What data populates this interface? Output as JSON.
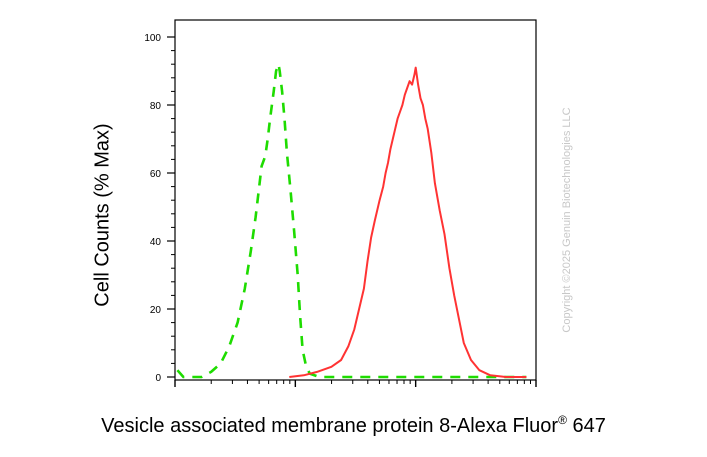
{
  "chart_data": {
    "type": "line",
    "title": "",
    "ylabel": "Cell Counts (% Max)",
    "xlabel_main": "Vesicle associated membrane protein 8-Alexa Fluor",
    "xlabel_sup": "®",
    "xlabel_tail": " 647",
    "xscale": "log",
    "xlim": [
      0,
      3
    ],
    "ylim": [
      0,
      100
    ],
    "yticks": [
      0,
      20,
      40,
      60,
      80,
      100
    ],
    "ytick_labels": [
      "0",
      "20",
      "40",
      "60",
      "80",
      "100"
    ],
    "grid": false,
    "legend": "none",
    "series": [
      {
        "color": "#1edc00",
        "style": "dashed",
        "points": [
          [
            0.02,
            2
          ],
          [
            0.07,
            0
          ],
          [
            0.14,
            0
          ],
          [
            0.22,
            0
          ],
          [
            0.3,
            1.5
          ],
          [
            0.38,
            4
          ],
          [
            0.45,
            9
          ],
          [
            0.52,
            16
          ],
          [
            0.58,
            26
          ],
          [
            0.63,
            37
          ],
          [
            0.67,
            47
          ],
          [
            0.7,
            56
          ],
          [
            0.72,
            62
          ],
          [
            0.75,
            65
          ],
          [
            0.77,
            70
          ],
          [
            0.79,
            76
          ],
          [
            0.82,
            84
          ],
          [
            0.84,
            90
          ],
          [
            0.86,
            92
          ],
          [
            0.87,
            90
          ],
          [
            0.89,
            84
          ],
          [
            0.91,
            76
          ],
          [
            0.93,
            66
          ],
          [
            0.96,
            55
          ],
          [
            0.99,
            43
          ],
          [
            1.02,
            30
          ],
          [
            1.04,
            18
          ],
          [
            1.06,
            8
          ],
          [
            1.09,
            3
          ],
          [
            1.12,
            1
          ],
          [
            1.2,
            0
          ],
          [
            1.5,
            0
          ],
          [
            2.0,
            0
          ],
          [
            2.5,
            0
          ],
          [
            2.92,
            0
          ]
        ]
      },
      {
        "color": "#ff3333",
        "style": "solid",
        "points": [
          [
            0.95,
            0
          ],
          [
            1.07,
            0.5
          ],
          [
            1.18,
            1.5
          ],
          [
            1.3,
            3
          ],
          [
            1.38,
            5
          ],
          [
            1.44,
            9
          ],
          [
            1.49,
            14
          ],
          [
            1.53,
            20
          ],
          [
            1.57,
            26
          ],
          [
            1.6,
            34
          ],
          [
            1.63,
            41
          ],
          [
            1.66,
            46
          ],
          [
            1.7,
            52
          ],
          [
            1.73,
            56
          ],
          [
            1.75,
            60
          ],
          [
            1.77,
            63
          ],
          [
            1.79,
            67
          ],
          [
            1.81,
            70
          ],
          [
            1.83,
            73
          ],
          [
            1.85,
            76
          ],
          [
            1.87,
            78
          ],
          [
            1.89,
            80
          ],
          [
            1.91,
            83
          ],
          [
            1.93,
            85
          ],
          [
            1.95,
            87
          ],
          [
            1.97,
            86
          ],
          [
            1.99,
            89
          ],
          [
            2.0,
            91
          ],
          [
            2.02,
            86
          ],
          [
            2.04,
            82
          ],
          [
            2.06,
            80
          ],
          [
            2.08,
            76
          ],
          [
            2.1,
            73
          ],
          [
            2.13,
            66
          ],
          [
            2.16,
            57
          ],
          [
            2.2,
            49
          ],
          [
            2.24,
            42
          ],
          [
            2.28,
            32
          ],
          [
            2.32,
            24
          ],
          [
            2.36,
            17
          ],
          [
            2.4,
            10
          ],
          [
            2.46,
            5
          ],
          [
            2.53,
            2
          ],
          [
            2.62,
            0.5
          ],
          [
            2.75,
            0
          ],
          [
            2.92,
            0
          ]
        ]
      }
    ]
  },
  "watermark": "Copyright ©2025 Genuin Biotechnologies LLC"
}
